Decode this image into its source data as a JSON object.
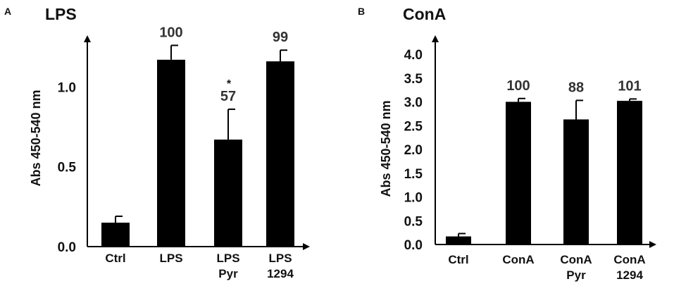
{
  "chart_data": [
    {
      "type": "bar",
      "panel": "A",
      "title": "LPS",
      "ylabel": "Abs 450-540 nm",
      "xlabel": "",
      "ylim": [
        0,
        1.2
      ],
      "yticks": [
        "0.0",
        "0.5",
        "1.0"
      ],
      "categories": [
        {
          "lines": [
            "Ctrl"
          ]
        },
        {
          "lines": [
            "LPS"
          ]
        },
        {
          "lines": [
            "LPS",
            "Pyr"
          ]
        },
        {
          "lines": [
            "LPS",
            "1294"
          ]
        }
      ],
      "values": [
        0.15,
        1.17,
        0.67,
        1.16
      ],
      "errors": [
        0.04,
        0.09,
        0.19,
        0.07
      ],
      "data_labels": [
        "",
        "100",
        "57",
        "99"
      ],
      "significance": [
        "",
        "",
        "*",
        ""
      ],
      "bar_color": "#000000"
    },
    {
      "type": "bar",
      "panel": "B",
      "title": "ConA",
      "ylabel": "Abs 450-540 nm",
      "xlabel": "",
      "ylim": [
        0,
        4.0
      ],
      "yticks": [
        "0.0",
        "0.5",
        "1.0",
        "1.5",
        "2.0",
        "2.5",
        "3.0",
        "3.5",
        "4.0"
      ],
      "categories": [
        {
          "lines": [
            "Ctrl"
          ]
        },
        {
          "lines": [
            "ConA"
          ]
        },
        {
          "lines": [
            "ConA",
            "Pyr"
          ]
        },
        {
          "lines": [
            "ConA",
            "1294"
          ]
        }
      ],
      "values": [
        0.17,
        3.0,
        2.63,
        3.02
      ],
      "errors": [
        0.06,
        0.07,
        0.4,
        0.04
      ],
      "data_labels": [
        "",
        "100",
        "88",
        "101"
      ],
      "significance": [
        "",
        "",
        "",
        ""
      ],
      "bar_color": "#000000"
    }
  ]
}
